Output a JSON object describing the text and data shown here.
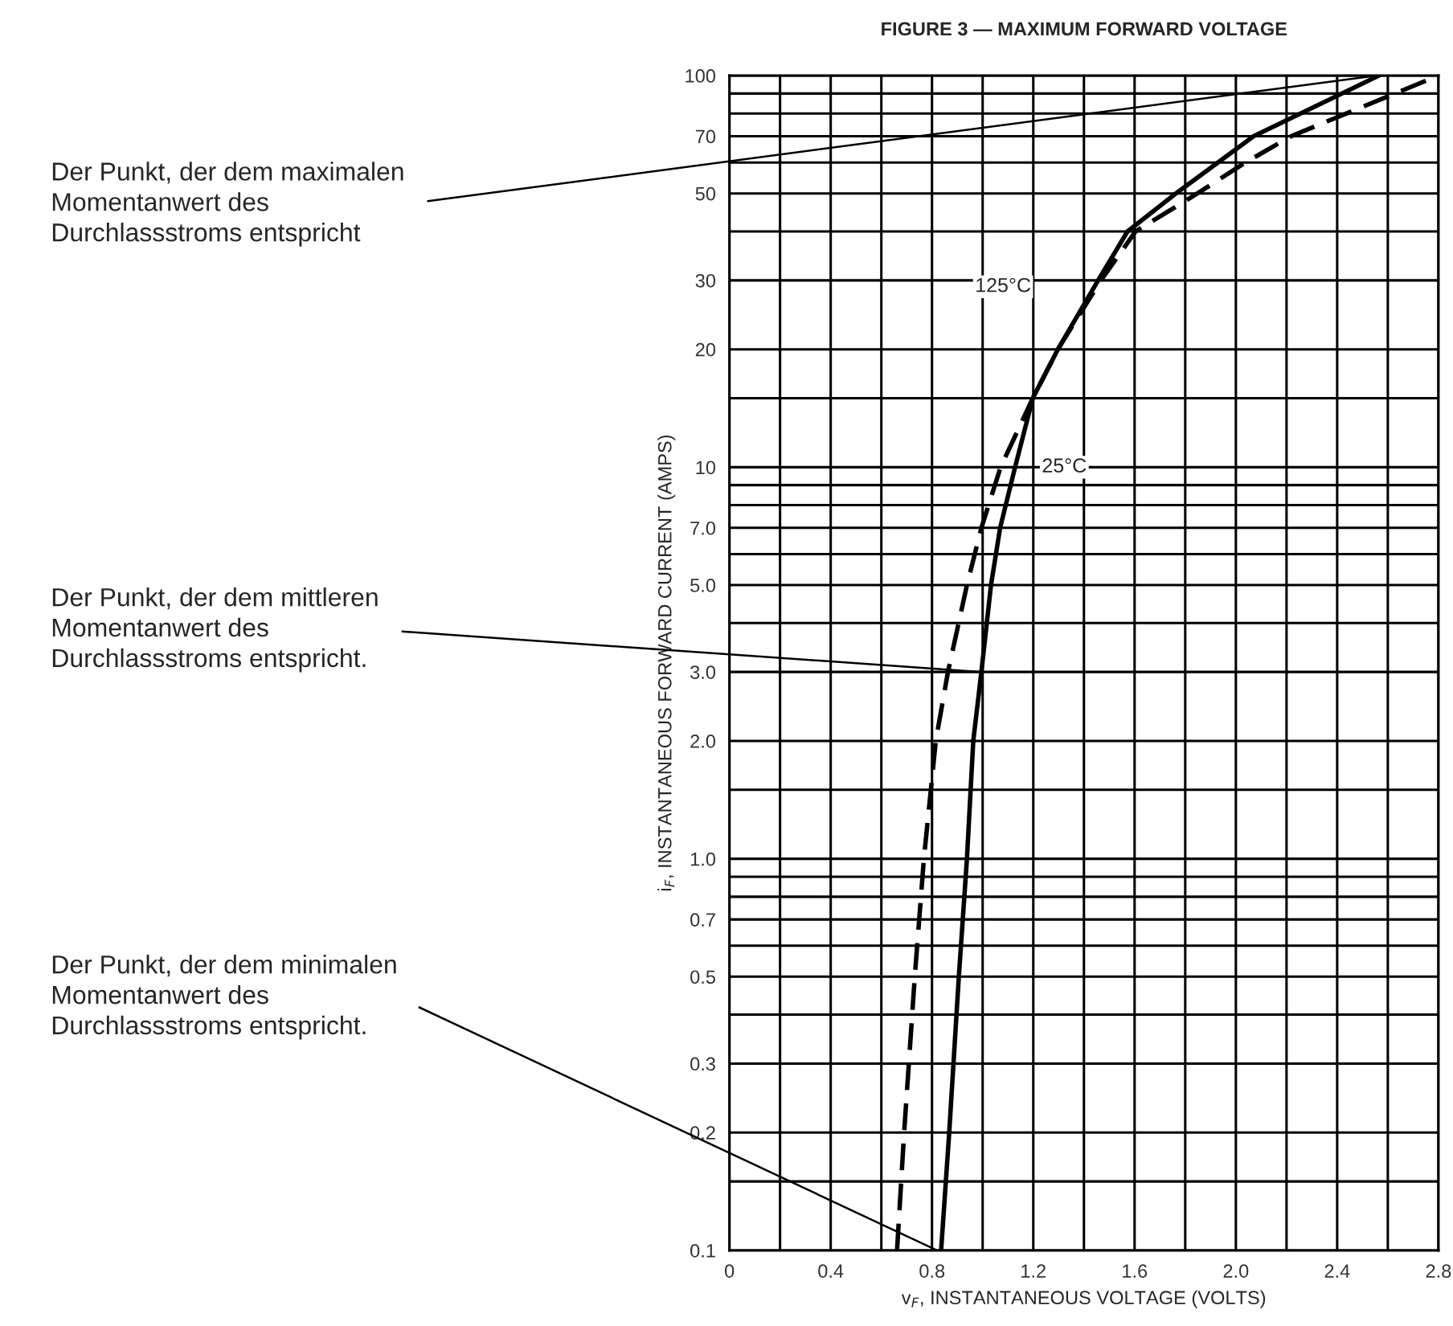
{
  "chart_data": {
    "type": "line",
    "title": "FIGURE 3 — MAXIMUM FORWARD VOLTAGE",
    "xlabel": "v$_{F}$, INSTANTANEOUS VOLTAGE (VOLTS)",
    "ylabel": "i$_{F}$, INSTANTANEOUS FORWARD CURRENT (AMPS)",
    "log": "y",
    "grid": true,
    "legend": false,
    "xlim": [
      0,
      2.8
    ],
    "ylim": [
      0.1,
      100
    ],
    "xticks": [
      0,
      {
        "value": 0.2,
        "label": null
      },
      0.4,
      {
        "value": 0.6,
        "label": null
      },
      0.8,
      {
        "value": 1.0,
        "label": null
      },
      1.2,
      {
        "value": 1.4,
        "label": null
      },
      1.6,
      {
        "value": 1.8,
        "label": null
      },
      {
        "value": 2.0,
        "label": "2.0"
      },
      {
        "value": 2.2,
        "label": null
      },
      2.4,
      {
        "value": 2.6,
        "label": null
      },
      2.8
    ],
    "yticks": [
      0.1,
      {
        "value": 0.15,
        "label": null
      },
      0.2,
      0.3,
      {
        "value": 0.4,
        "label": null
      },
      0.5,
      {
        "value": 0.6,
        "label": null
      },
      0.7,
      {
        "value": 0.8,
        "label": null
      },
      {
        "value": 0.9,
        "label": null
      },
      {
        "value": 1.0,
        "label": "1.0"
      },
      {
        "value": 1.5,
        "label": null
      },
      {
        "value": 2.0,
        "label": "2.0"
      },
      {
        "value": 3.0,
        "label": "3.0"
      },
      {
        "value": 4,
        "label": null
      },
      {
        "value": 5.0,
        "label": "5.0"
      },
      {
        "value": 6,
        "label": null
      },
      {
        "value": 7.0,
        "label": "7.0"
      },
      {
        "value": 8,
        "label": null
      },
      {
        "value": 9,
        "label": null
      },
      10,
      {
        "value": 15,
        "label": null
      },
      20,
      30,
      {
        "value": 40,
        "label": null
      },
      50,
      {
        "value": 60,
        "label": null
      },
      70,
      {
        "value": 80,
        "label": null
      },
      {
        "value": 90,
        "label": null
      },
      100
    ],
    "series": [
      {
        "name": "25°C",
        "color": "#000000",
        "line_style": "solid",
        "x": [
          0.836,
          0.868,
          0.906,
          0.938,
          0.963,
          0.995,
          1.033,
          1.069,
          1.128,
          1.198,
          1.297,
          1.456,
          1.572,
          1.763,
          2.07,
          2.565
        ],
        "values": [
          0.1,
          0.2,
          0.5,
          1.0,
          2.0,
          3.0,
          5.0,
          7.0,
          10,
          15,
          20,
          30,
          40,
          50,
          70,
          100
        ]
      },
      {
        "name": "125°C",
        "color": "#000000",
        "line_style": "dashed",
        "x": [
          0.662,
          0.69,
          0.732,
          0.768,
          0.815,
          0.863,
          0.938,
          0.995,
          1.071,
          1.198,
          1.297,
          1.467,
          1.604,
          1.848,
          2.038,
          2.218,
          2.8
        ],
        "values": [
          0.1,
          0.2,
          0.5,
          1.0,
          2.0,
          3.0,
          5.0,
          7.0,
          10,
          15,
          20,
          30,
          40,
          50,
          60,
          70,
          100
        ]
      }
    ],
    "annotations": [
      {
        "text": "Der Punkt, der dem maximalen\nMomentanwert des\nDurchlassstroms entspricht",
        "x": 2.557,
        "y": 100
      },
      {
        "text": "Der Punkt, der dem mittleren\nMomentanwert des\nDurchlassstroms entspricht.",
        "x": 0.995,
        "y": 3.0
      },
      {
        "text": "Der Punkt, der dem minimalen\nMomentanwert des\nDurchlassstroms entspricht.",
        "x": 0.82,
        "y": 0.1
      }
    ]
  }
}
